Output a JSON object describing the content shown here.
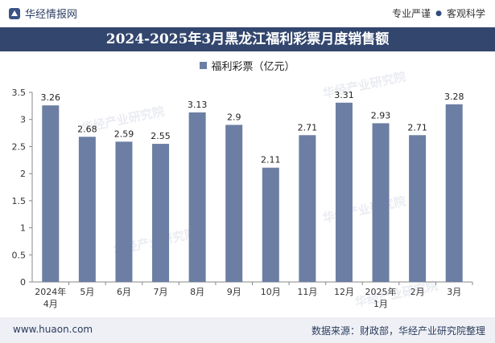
{
  "header": {
    "brand": "华经情报网",
    "tagline_left": "专业严谨",
    "tagline_right": "客观科学",
    "title": "2024-2025年3月黑龙江福利彩票月度销售额"
  },
  "watermark": "华经产业研究院",
  "footer": {
    "url": "www.huaon.com",
    "source": "数据来源：财政部，华经产业研究院整理"
  },
  "colors": {
    "bar": "#6c7ea3",
    "title_bg": "#33466e",
    "footer_bg": "#eef0f5"
  },
  "chart_data": {
    "type": "bar",
    "title": "2024-2025年3月黑龙江福利彩票月度销售额",
    "categories": [
      "2024年\n4月",
      "5月",
      "6月",
      "7月",
      "8月",
      "9月",
      "10月",
      "11月",
      "12月",
      "2025年\n1月",
      "2月",
      "3月"
    ],
    "series": [
      {
        "name": "福利彩票（亿元）",
        "values": [
          3.26,
          2.68,
          2.59,
          2.55,
          3.13,
          2.9,
          2.11,
          2.71,
          3.31,
          2.93,
          2.71,
          3.28
        ]
      }
    ],
    "value_labels": [
      "3.26",
      "2.68",
      "2.59",
      "2.55",
      "3.13",
      "2.9",
      "2.11",
      "2.71",
      "3.31",
      "2.93",
      "2.71",
      "3.28"
    ],
    "yticks": [
      "0",
      "0.5",
      "1",
      "1.5",
      "2",
      "2.5",
      "3",
      "3.5"
    ],
    "ylim": [
      0,
      3.5
    ],
    "grid": false,
    "legend": "top-center"
  }
}
